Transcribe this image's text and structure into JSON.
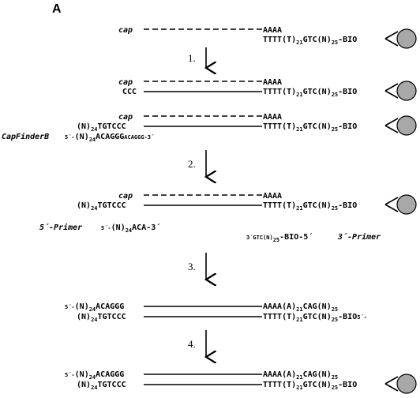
{
  "panel_label": "A",
  "labels": {
    "cap": "cap",
    "aaaa": "AAAA",
    "ccc": "CCC",
    "tttt_a": "TTTT(T)",
    "n21": "21",
    "gtc_n": "GTC(N)",
    "n25": "25",
    "bio": "-BIO",
    "bio5": "-BIO-5´",
    "n_open": "(N)",
    "n24": "24",
    "tgtccc": "TGTCCC",
    "acaggg": "ACAGGG",
    "acaggg3": "ACAGGG-3´",
    "five_prime": "5´-",
    "five_prime_n": "5´-(N)",
    "aca3": "ACA-3´",
    "three_gtc": "3´GTC(N)",
    "bio5_dash": "-BIO-5´",
    "aaaa_a": "AAAA(A)",
    "cag_n": "CAG(N)",
    "capfinder": "CapFinderB",
    "five_primer": "5´-Primer",
    "three_primer": "3´-Primer"
  },
  "steps": [
    "1.",
    "2.",
    "3.",
    "4."
  ]
}
